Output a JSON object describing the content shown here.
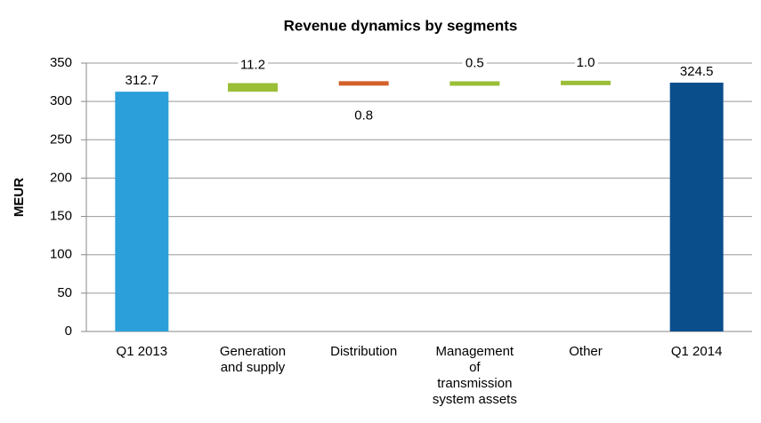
{
  "chart_data": {
    "type": "waterfall",
    "title": "Revenue dynamics by segments",
    "y_label": "MEUR",
    "categories": [
      "Q1 2013",
      "Generation and supply",
      "Distribution",
      "Management of transmission system assets",
      "Other",
      "Q1 2014"
    ],
    "values": [
      312.7,
      11.2,
      -0.8,
      0.5,
      1.0,
      324.5
    ],
    "value_labels": [
      "312.7",
      "11.2",
      "0.8",
      "0.5",
      "1.0",
      "324.5"
    ],
    "colors": [
      "#2a9fd9",
      "#9bbe37",
      "#d3602b",
      "#9bbe37",
      "#9bbe37",
      "#0a4e8c"
    ],
    "ylim": [
      0,
      350
    ],
    "yticks": [
      0,
      50,
      100,
      150,
      200,
      250,
      300,
      350
    ],
    "grid": true
  }
}
